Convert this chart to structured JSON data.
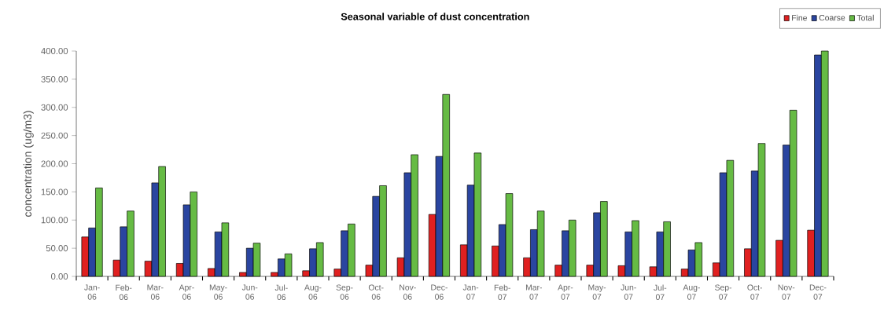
{
  "chart_data": {
    "type": "bar",
    "title": "Seasonal variable of dust concentration",
    "ylabel": "concentration (ug/m3)",
    "categories": [
      "Jan-06",
      "Feb-06",
      "Mar-06",
      "Apr-06",
      "May-06",
      "Jun-06",
      "Jul-06",
      "Aug-06",
      "Sep-06",
      "Oct-06",
      "Nov-06",
      "Dec-06",
      "Jan-07",
      "Feb-07",
      "Mar-07",
      "Apr-07",
      "May-07",
      "Jun-07",
      "Jul-07",
      "Aug-07",
      "Sep-07",
      "Oct-07",
      "Nov-07",
      "Dec-07"
    ],
    "series": [
      {
        "name": "Fine",
        "color": "#e02020",
        "values": [
          70,
          29,
          27,
          23,
          14,
          7,
          7,
          10,
          13,
          20,
          33,
          110,
          56,
          54,
          33,
          20,
          20,
          19,
          17,
          13,
          24,
          49,
          64,
          82
        ]
      },
      {
        "name": "Coarse",
        "color": "#2a45a0",
        "values": [
          86,
          88,
          166,
          127,
          79,
          50,
          31,
          49,
          81,
          142,
          184,
          213,
          162,
          92,
          83,
          81,
          113,
          79,
          79,
          47,
          184,
          187,
          233,
          393
        ]
      },
      {
        "name": "Total",
        "color": "#66bb44",
        "values": [
          157,
          116,
          195,
          150,
          95,
          59,
          40,
          60,
          93,
          161,
          216,
          323,
          219,
          147,
          116,
          100,
          133,
          99,
          97,
          60,
          206,
          236,
          295,
          400
        ]
      }
    ],
    "ylim": [
      0,
      400
    ],
    "yticks": [
      {
        "value": 0,
        "label": "0.00"
      },
      {
        "value": 50,
        "label": "50.00"
      },
      {
        "value": 100,
        "label": "100.00"
      },
      {
        "value": 150,
        "label": "150.00"
      },
      {
        "value": 200,
        "label": "200.00"
      },
      {
        "value": 250,
        "label": "250.00"
      },
      {
        "value": 300,
        "label": "300.00"
      },
      {
        "value": 350,
        "label": "350.00"
      },
      {
        "value": 400,
        "label": "400.00"
      }
    ],
    "grid": false,
    "legend": "top right"
  }
}
